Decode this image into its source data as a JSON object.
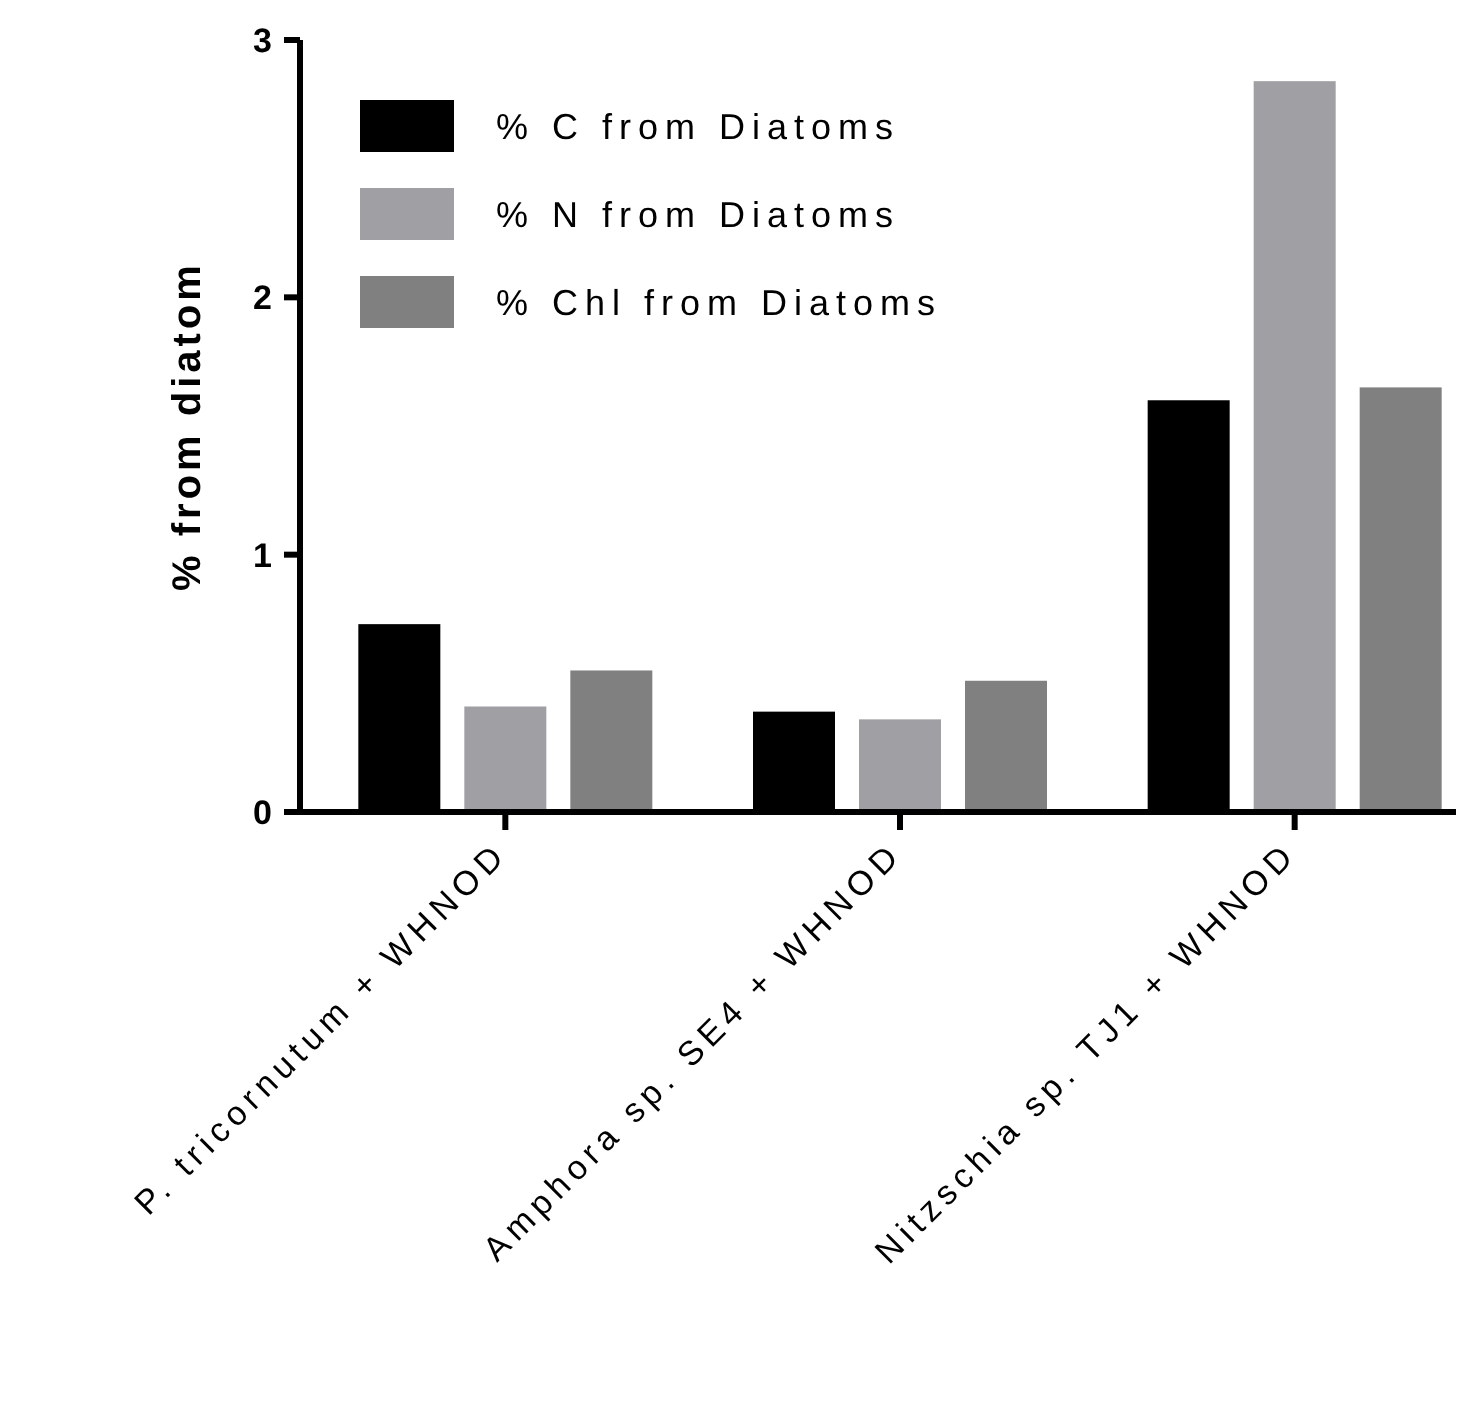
{
  "chart_data": {
    "type": "bar",
    "ylabel": "% from diatom",
    "categories": [
      "P. tricornutum + WHNOD",
      "Amphora sp. SE4 + WHNOD",
      "Nitzschia sp. TJ1 + WHNOD"
    ],
    "series": [
      {
        "name": "% C from Diatoms",
        "color": "#000000",
        "values": [
          0.73,
          0.39,
          1.6
        ]
      },
      {
        "name": "% N from Diatoms",
        "color": "#a0a0a4",
        "values": [
          0.41,
          0.36,
          2.84
        ]
      },
      {
        "name": "% Chl from Diatoms",
        "color": "#808080",
        "values": [
          0.55,
          0.51,
          1.65
        ]
      }
    ],
    "ylim": [
      0,
      3
    ],
    "yticks": [
      0,
      1,
      2,
      3
    ],
    "grid": false,
    "legend": "top left"
  }
}
